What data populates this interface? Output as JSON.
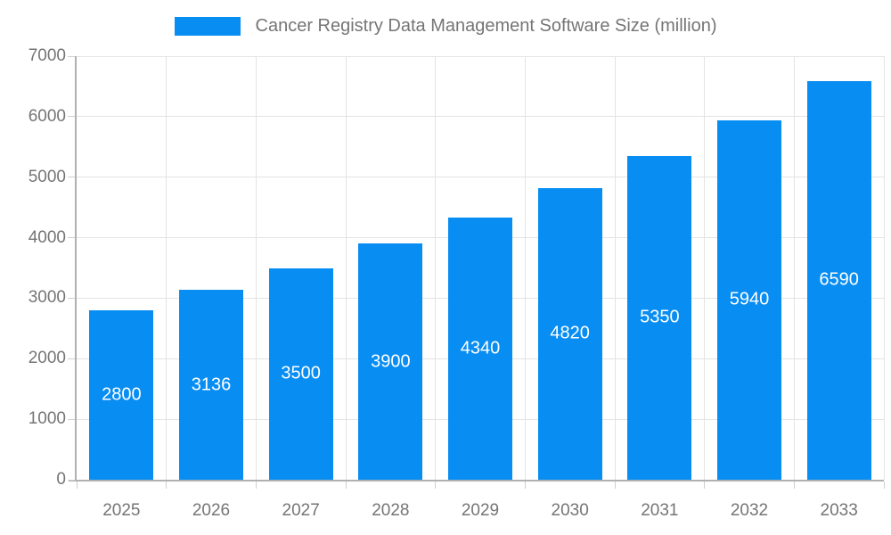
{
  "legend": {
    "swatch_color": "#088df2",
    "label": "Cancer Registry Data Management Software Size (million)"
  },
  "chart_data": {
    "type": "bar",
    "title": "Cancer Registry Data Management Software Size (million)",
    "categories": [
      "2025",
      "2026",
      "2027",
      "2028",
      "2029",
      "2030",
      "2031",
      "2032",
      "2033"
    ],
    "series": [
      {
        "name": "Cancer Registry Data Management Software Size (million)",
        "color": "#088df2",
        "values": [
          2800,
          3136,
          3500,
          3900,
          4340,
          4820,
          5350,
          5940,
          6590
        ]
      }
    ],
    "xlabel": "",
    "ylabel": "",
    "ylim": [
      0,
      7000
    ],
    "yticks": [
      0,
      1000,
      2000,
      3000,
      4000,
      5000,
      6000,
      7000
    ],
    "grid": true,
    "legend_position": "top-center",
    "value_labels_inside_bars": true,
    "colors": {
      "bar": "#088df2",
      "grid": "#e4e4e4",
      "axis": "#b0b0b0",
      "tick": "#cfcfcf",
      "text": "#757575",
      "value_label": "#ffffff",
      "background": "#ffffff"
    }
  }
}
